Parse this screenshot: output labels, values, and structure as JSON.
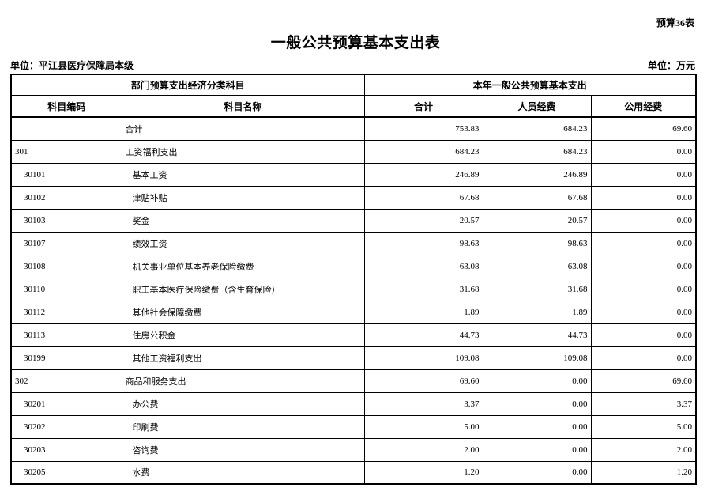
{
  "page": {
    "sheet_label": "预算36表",
    "title": "一般公共预算基本支出表",
    "unit_left": "单位：平江县医疗保障局本级",
    "unit_right": "单位：万元"
  },
  "table": {
    "header_group_left": "部门预算支出经济分类科目",
    "header_group_right": "本年一般公共预算基本支出",
    "columns": [
      "科目编码",
      "科目名称",
      "合计",
      "人员经费",
      "公用经费"
    ],
    "rows": [
      {
        "code": "",
        "name": "合计",
        "total": "753.83",
        "personnel": "684.23",
        "public": "69.60",
        "level": 0
      },
      {
        "code": "301",
        "name": "工资福利支出",
        "total": "684.23",
        "personnel": "684.23",
        "public": "0.00",
        "level": 0
      },
      {
        "code": "30101",
        "name": "基本工资",
        "total": "246.89",
        "personnel": "246.89",
        "public": "0.00",
        "level": 1
      },
      {
        "code": "30102",
        "name": "津贴补贴",
        "total": "67.68",
        "personnel": "67.68",
        "public": "0.00",
        "level": 1
      },
      {
        "code": "30103",
        "name": "奖金",
        "total": "20.57",
        "personnel": "20.57",
        "public": "0.00",
        "level": 1
      },
      {
        "code": "30107",
        "name": "绩效工资",
        "total": "98.63",
        "personnel": "98.63",
        "public": "0.00",
        "level": 1
      },
      {
        "code": "30108",
        "name": "机关事业单位基本养老保险缴费",
        "total": "63.08",
        "personnel": "63.08",
        "public": "0.00",
        "level": 1
      },
      {
        "code": "30110",
        "name": "职工基本医疗保险缴费（含生育保险）",
        "total": "31.68",
        "personnel": "31.68",
        "public": "0.00",
        "level": 1
      },
      {
        "code": "30112",
        "name": "其他社会保障缴费",
        "total": "1.89",
        "personnel": "1.89",
        "public": "0.00",
        "level": 1
      },
      {
        "code": "30113",
        "name": "住房公积金",
        "total": "44.73",
        "personnel": "44.73",
        "public": "0.00",
        "level": 1
      },
      {
        "code": "30199",
        "name": "其他工资福利支出",
        "total": "109.08",
        "personnel": "109.08",
        "public": "0.00",
        "level": 1
      },
      {
        "code": "302",
        "name": "商品和服务支出",
        "total": "69.60",
        "personnel": "0.00",
        "public": "69.60",
        "level": 0
      },
      {
        "code": "30201",
        "name": "办公费",
        "total": "3.37",
        "personnel": "0.00",
        "public": "3.37",
        "level": 1
      },
      {
        "code": "30202",
        "name": "印刷费",
        "total": "5.00",
        "personnel": "0.00",
        "public": "5.00",
        "level": 1
      },
      {
        "code": "30203",
        "name": "咨询费",
        "total": "2.00",
        "personnel": "0.00",
        "public": "2.00",
        "level": 1
      },
      {
        "code": "30205",
        "name": "水费",
        "total": "1.20",
        "personnel": "0.00",
        "public": "1.20",
        "level": 1
      }
    ]
  }
}
